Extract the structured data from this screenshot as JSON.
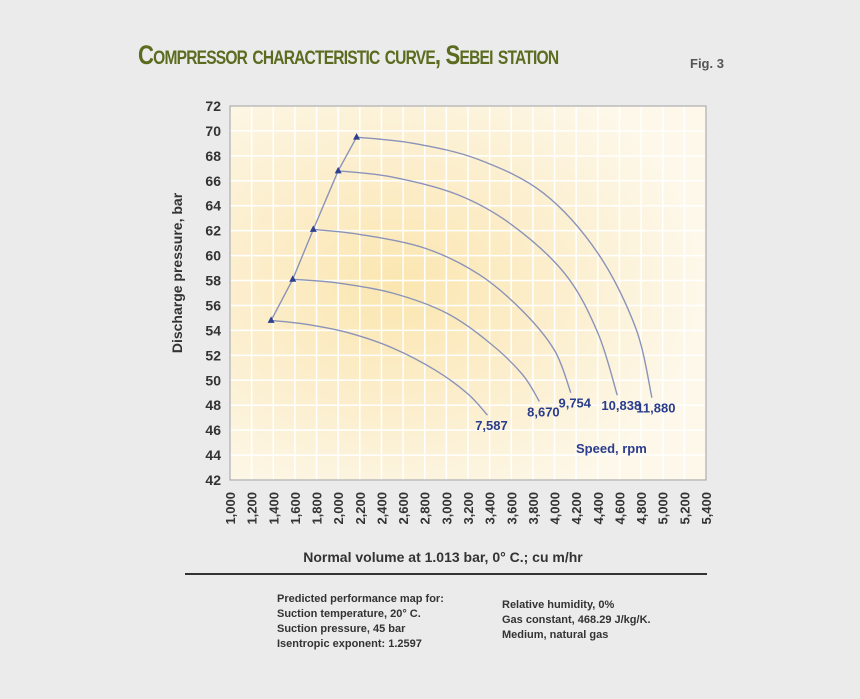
{
  "title": "Compressor characteristic curve, Sebei station",
  "figure_label": "Fig. 3",
  "chart_data": {
    "type": "line",
    "xlabel": "Normal volume at 1.013 bar, 0° C.; cu m/hr",
    "ylabel": "Discharge pressure, bar",
    "xlim": [
      1000,
      5400
    ],
    "ylim": [
      42,
      72
    ],
    "x_ticks": [
      "1,000",
      "1,200",
      "1,400",
      "1,600",
      "1,800",
      "2,000",
      "2,200",
      "2,400",
      "2,600",
      "2,800",
      "3,000",
      "3,200",
      "3,400",
      "3,600",
      "3,800",
      "4,000",
      "4,200",
      "4,400",
      "4,600",
      "4,800",
      "5,000",
      "5,200",
      "5,400"
    ],
    "y_ticks": [
      "72",
      "70",
      "68",
      "66",
      "64",
      "62",
      "60",
      "58",
      "56",
      "54",
      "52",
      "50",
      "48",
      "46",
      "44",
      "42"
    ],
    "grid": true,
    "legend_title": "Speed, rpm",
    "series": [
      {
        "name": "7,587",
        "x": [
          1380,
          1700,
          2100,
          2500,
          2900,
          3200,
          3380
        ],
        "y": [
          54.8,
          54.5,
          53.8,
          52.6,
          50.8,
          48.9,
          47.2
        ]
      },
      {
        "name": "8,670",
        "x": [
          1580,
          2000,
          2500,
          3000,
          3400,
          3700,
          3860
        ],
        "y": [
          58.1,
          57.8,
          57.0,
          55.4,
          53.0,
          50.5,
          48.3
        ]
      },
      {
        "name": "9,754",
        "x": [
          1770,
          2200,
          2800,
          3300,
          3700,
          4000,
          4150
        ],
        "y": [
          62.1,
          61.7,
          60.6,
          58.5,
          55.6,
          52.4,
          49.0
        ]
      },
      {
        "name": "10,838",
        "x": [
          2000,
          2500,
          3100,
          3600,
          4100,
          4400,
          4580
        ],
        "y": [
          66.8,
          66.3,
          64.9,
          62.5,
          58.5,
          53.8,
          48.8
        ]
      },
      {
        "name": "11,880",
        "x": [
          2170,
          2700,
          3300,
          3900,
          4400,
          4750,
          4900
        ],
        "y": [
          69.5,
          69.0,
          67.7,
          65.0,
          60.2,
          54.2,
          48.6
        ]
      }
    ],
    "surge_line": {
      "x": [
        1380,
        1580,
        1770,
        2000,
        2170
      ],
      "y": [
        54.8,
        58.1,
        62.1,
        66.8,
        69.5
      ]
    }
  },
  "notes_left": [
    "Predicted performance map for:",
    "Suction temperature, 20° C.",
    "Suction pressure, 45 bar",
    "Isentropic exponent:   1.2597"
  ],
  "notes_right": [
    "Relative humidity, 0%",
    "Gas constant, 468.29 J/kg/K.",
    "Medium, natural gas"
  ],
  "colors": {
    "curve": "#8a93b8",
    "marker": "#2f3f8f",
    "label": "#2a3d8c",
    "grid": "#ffffff",
    "title": "#5b6b1f"
  }
}
